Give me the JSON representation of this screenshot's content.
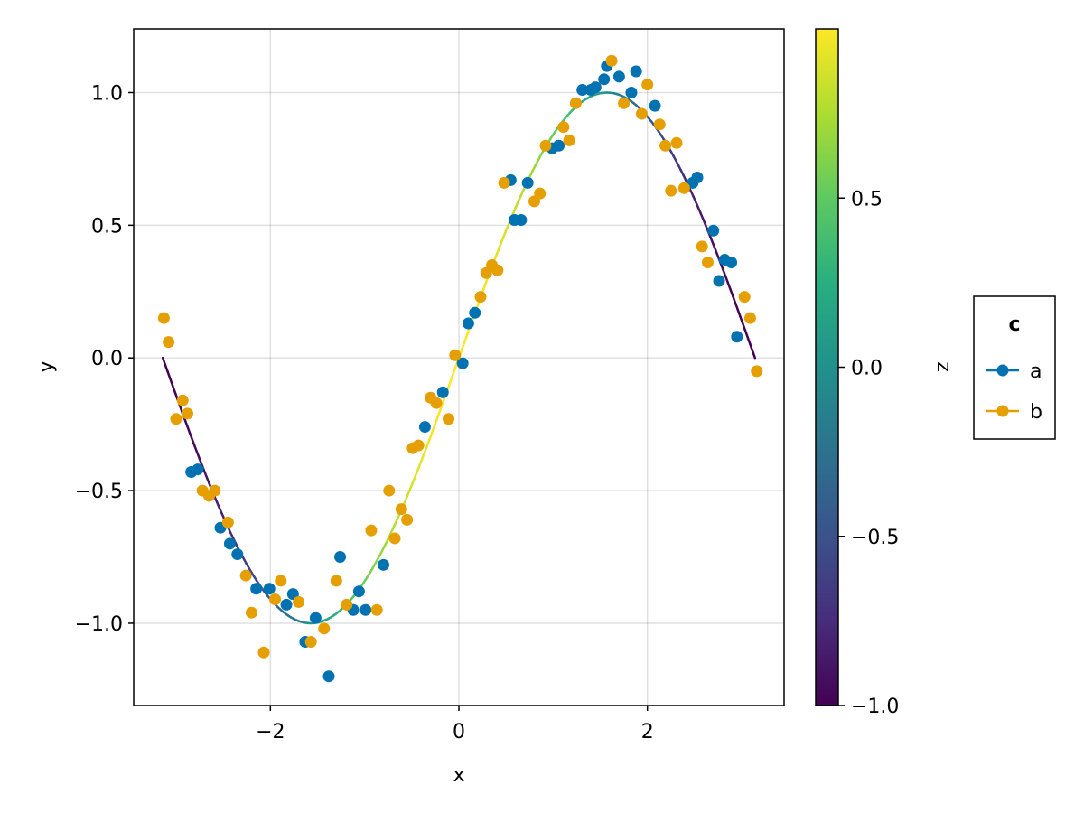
{
  "chart_data": {
    "type": "scatter",
    "title": "",
    "xlabel": "x",
    "ylabel": "y",
    "xlim": [
      -3.45,
      3.45
    ],
    "ylim": [
      -1.31,
      1.24
    ],
    "xticks": [
      -2,
      0,
      2
    ],
    "yticks": [
      -1.0,
      -0.5,
      0.0,
      0.5,
      1.0
    ],
    "grid": true,
    "line": {
      "function": "sin(x)",
      "x_range": [
        -3.1416,
        3.1416
      ],
      "colormap": "viridis",
      "color_value": "1 - 2*|cos(x)| ... mapped via z = cos-based color (dark at ends/peaks, yellow near 0)"
    },
    "colorbar": {
      "label": "z",
      "range": [
        -1.0,
        1.0
      ],
      "ticks": [
        -1.0,
        -0.5,
        0.0,
        0.5
      ],
      "tick_labels": [
        "−1.0",
        "−0.5",
        "0.0",
        "0.5"
      ]
    },
    "legend": {
      "title": "c",
      "placement": "right",
      "entries": [
        {
          "label": "a",
          "color": "#0072b2"
        },
        {
          "label": "b",
          "color": "#e69f00"
        }
      ]
    },
    "series": [
      {
        "name": "a",
        "color": "#0072b2",
        "points": [
          [
            -2.84,
            -0.43
          ],
          [
            -2.77,
            -0.42
          ],
          [
            -2.53,
            -0.64
          ],
          [
            -2.43,
            -0.7
          ],
          [
            -2.35,
            -0.74
          ],
          [
            -2.15,
            -0.87
          ],
          [
            -2.01,
            -0.87
          ],
          [
            -1.83,
            -0.93
          ],
          [
            -1.76,
            -0.89
          ],
          [
            -1.63,
            -1.07
          ],
          [
            -1.52,
            -0.98
          ],
          [
            -1.38,
            -1.2
          ],
          [
            -1.26,
            -0.75
          ],
          [
            -1.12,
            -0.95
          ],
          [
            -1.06,
            -0.88
          ],
          [
            -0.99,
            -0.95
          ],
          [
            -0.8,
            -0.78
          ],
          [
            -0.36,
            -0.26
          ],
          [
            -0.17,
            -0.13
          ],
          [
            0.04,
            -0.02
          ],
          [
            0.1,
            0.13
          ],
          [
            0.17,
            0.17
          ],
          [
            0.55,
            0.67
          ],
          [
            0.59,
            0.52
          ],
          [
            0.66,
            0.52
          ],
          [
            0.73,
            0.66
          ],
          [
            0.99,
            0.79
          ],
          [
            1.06,
            0.8
          ],
          [
            1.31,
            1.01
          ],
          [
            1.4,
            1.01
          ],
          [
            1.45,
            1.02
          ],
          [
            1.54,
            1.05
          ],
          [
            1.57,
            1.1
          ],
          [
            1.7,
            1.06
          ],
          [
            1.83,
            1.0
          ],
          [
            1.88,
            1.08
          ],
          [
            2.08,
            0.95
          ],
          [
            2.48,
            0.66
          ],
          [
            2.53,
            0.68
          ],
          [
            2.7,
            0.48
          ],
          [
            2.76,
            0.29
          ],
          [
            2.82,
            0.37
          ],
          [
            2.89,
            0.36
          ],
          [
            2.95,
            0.08
          ]
        ]
      },
      {
        "name": "b",
        "color": "#e69f00",
        "points": [
          [
            -3.13,
            0.15
          ],
          [
            -3.08,
            0.06
          ],
          [
            -3.0,
            -0.23
          ],
          [
            -2.93,
            -0.16
          ],
          [
            -2.88,
            -0.21
          ],
          [
            -2.72,
            -0.5
          ],
          [
            -2.65,
            -0.52
          ],
          [
            -2.59,
            -0.5
          ],
          [
            -2.45,
            -0.62
          ],
          [
            -2.26,
            -0.82
          ],
          [
            -2.2,
            -0.96
          ],
          [
            -2.07,
            -1.11
          ],
          [
            -1.95,
            -0.91
          ],
          [
            -1.89,
            -0.84
          ],
          [
            -1.7,
            -0.92
          ],
          [
            -1.57,
            -1.07
          ],
          [
            -1.43,
            -1.02
          ],
          [
            -1.3,
            -0.84
          ],
          [
            -1.19,
            -0.93
          ],
          [
            -0.93,
            -0.65
          ],
          [
            -0.87,
            -0.95
          ],
          [
            -0.74,
            -0.5
          ],
          [
            -0.68,
            -0.68
          ],
          [
            -0.61,
            -0.57
          ],
          [
            -0.55,
            -0.61
          ],
          [
            -0.49,
            -0.34
          ],
          [
            -0.43,
            -0.33
          ],
          [
            -0.3,
            -0.15
          ],
          [
            -0.24,
            -0.17
          ],
          [
            -0.11,
            -0.23
          ],
          [
            -0.04,
            0.01
          ],
          [
            0.23,
            0.23
          ],
          [
            0.29,
            0.32
          ],
          [
            0.35,
            0.35
          ],
          [
            0.41,
            0.33
          ],
          [
            0.48,
            0.66
          ],
          [
            0.8,
            0.59
          ],
          [
            0.86,
            0.62
          ],
          [
            0.92,
            0.8
          ],
          [
            1.11,
            0.87
          ],
          [
            1.17,
            0.82
          ],
          [
            1.24,
            0.96
          ],
          [
            1.62,
            1.12
          ],
          [
            1.75,
            0.96
          ],
          [
            1.94,
            0.92
          ],
          [
            2.0,
            1.03
          ],
          [
            2.13,
            0.88
          ],
          [
            2.19,
            0.8
          ],
          [
            2.25,
            0.63
          ],
          [
            2.31,
            0.81
          ],
          [
            2.39,
            0.64
          ],
          [
            2.58,
            0.42
          ],
          [
            2.64,
            0.36
          ],
          [
            3.03,
            0.23
          ],
          [
            3.09,
            0.15
          ],
          [
            3.16,
            -0.05
          ]
        ]
      }
    ]
  }
}
